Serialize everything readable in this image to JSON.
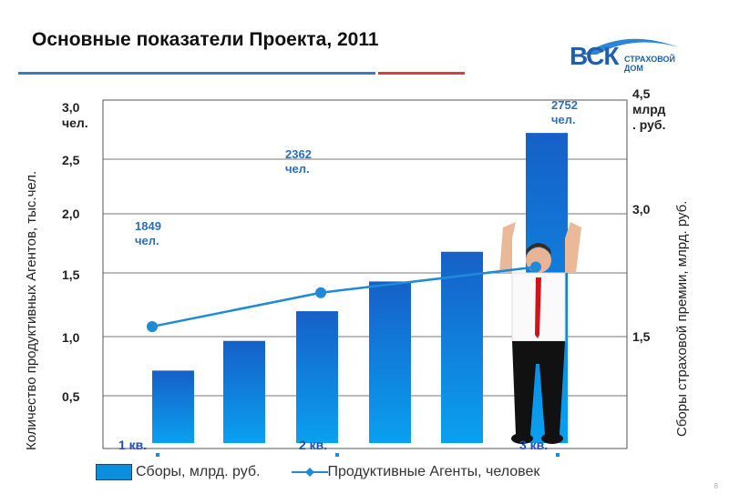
{
  "title": "Основные показатели Проекта, 2011",
  "logo": {
    "main": "ВСК",
    "sub": "СТРАХОВОЙ ДОМ"
  },
  "colors": {
    "bar": "#0a8ee0",
    "line": "#1f8ad6",
    "title_rule_blue": "#3a7cc3",
    "title_rule_red": "#e03a3a"
  },
  "chart_data": {
    "type": "bar+line",
    "left_axis": {
      "label": "Количество продуктивных Агентов, тыс.чел.",
      "ticks": [
        "3,0\nчел.",
        "2,5",
        "2,0",
        "1,5",
        "1,0",
        "0,5"
      ],
      "range": [
        0,
        3.0
      ]
    },
    "right_axis": {
      "label": "Сборы страховой премии, млрд. руб.",
      "ticks": [
        "4,5\nмлрд\n. руб.",
        "3,0",
        "1,5"
      ],
      "range": [
        0,
        4.5
      ]
    },
    "x_labels": [
      "1 кв.",
      "2 кв.",
      "3 кв."
    ],
    "series": [
      {
        "name": "Сборы, млрд. руб.",
        "type": "bar",
        "axis": "right",
        "values": [
          1.1,
          1.45,
          1.8,
          2.15,
          2.5,
          3.9
        ]
      },
      {
        "name": "Продуктивные Агенты, человек",
        "type": "line",
        "axis": "left",
        "x": [
          "1 кв.",
          "2 кв.",
          "3 кв."
        ],
        "values": [
          1849,
          2362,
          2752
        ],
        "labels": [
          "1849\nчел.",
          "2362\nчел.",
          "2752\nчел."
        ]
      }
    ],
    "legend": "bottom"
  },
  "page_marker": "8"
}
